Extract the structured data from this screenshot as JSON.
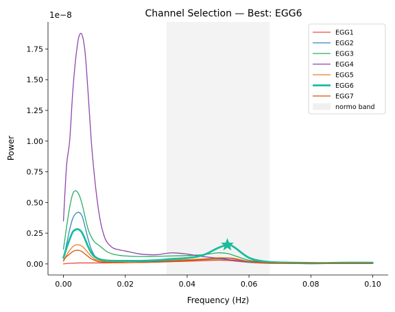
{
  "chart_data": {
    "type": "line",
    "title": "Channel Selection — Best: EGG6",
    "xlabel": "Frequency (Hz)",
    "ylabel": "Power",
    "scale_label": "1e−8",
    "xlim": [
      -0.005,
      0.105
    ],
    "ylim": [
      -0.09,
      1.97
    ],
    "x_ticks": [
      0.0,
      0.02,
      0.04,
      0.06,
      0.08,
      0.1
    ],
    "x_tick_labels": [
      "0.00",
      "0.02",
      "0.04",
      "0.06",
      "0.08",
      "0.10"
    ],
    "y_ticks": [
      0.0,
      0.25,
      0.5,
      0.75,
      1.0,
      1.25,
      1.5,
      1.75
    ],
    "y_tick_labels": [
      "0.00",
      "0.25",
      "0.50",
      "0.75",
      "1.00",
      "1.25",
      "1.50",
      "1.75"
    ],
    "normo_band": {
      "label": "normo band",
      "x_range": [
        0.0333,
        0.0667
      ],
      "color": "#eeeeee"
    },
    "best": {
      "name": "EGG6",
      "x": 0.053,
      "y": 0.155,
      "color": "#1abc9c"
    },
    "legend_position": "top-right",
    "grid": false,
    "x": [
      0.0,
      0.001,
      0.002,
      0.003,
      0.004,
      0.005,
      0.006,
      0.007,
      0.008,
      0.009,
      0.01,
      0.011,
      0.012,
      0.013,
      0.014,
      0.016,
      0.018,
      0.02,
      0.025,
      0.03,
      0.035,
      0.04,
      0.045,
      0.05,
      0.053,
      0.055,
      0.06,
      0.065,
      0.07,
      0.08,
      0.09,
      0.1
    ],
    "series": [
      {
        "name": "EGG1",
        "color": "#e74c3c",
        "width": 1.3,
        "values": [
          0.0,
          0.003,
          0.005,
          0.006,
          0.007,
          0.008,
          0.008,
          0.008,
          0.008,
          0.008,
          0.008,
          0.008,
          0.008,
          0.008,
          0.008,
          0.009,
          0.01,
          0.01,
          0.012,
          0.014,
          0.018,
          0.022,
          0.026,
          0.03,
          0.028,
          0.024,
          0.012,
          0.006,
          0.004,
          0.003,
          0.003,
          0.003
        ]
      },
      {
        "name": "EGG2",
        "color": "#2e86c1",
        "width": 1.3,
        "values": [
          0.05,
          0.16,
          0.28,
          0.37,
          0.41,
          0.42,
          0.39,
          0.3,
          0.2,
          0.12,
          0.07,
          0.05,
          0.04,
          0.035,
          0.03,
          0.025,
          0.02,
          0.02,
          0.02,
          0.022,
          0.025,
          0.03,
          0.035,
          0.04,
          0.035,
          0.03,
          0.015,
          0.01,
          0.008,
          0.005,
          0.005,
          0.005
        ]
      },
      {
        "name": "EGG3",
        "color": "#27ae60",
        "width": 1.3,
        "values": [
          0.12,
          0.3,
          0.46,
          0.57,
          0.595,
          0.565,
          0.49,
          0.38,
          0.28,
          0.22,
          0.18,
          0.16,
          0.14,
          0.12,
          0.1,
          0.08,
          0.07,
          0.065,
          0.06,
          0.062,
          0.065,
          0.068,
          0.075,
          0.09,
          0.085,
          0.07,
          0.03,
          0.018,
          0.015,
          0.012,
          0.01,
          0.01
        ]
      },
      {
        "name": "EGG4",
        "color": "#8e44ad",
        "width": 1.3,
        "values": [
          0.35,
          0.8,
          1.0,
          1.4,
          1.68,
          1.85,
          1.865,
          1.72,
          1.38,
          1.0,
          0.72,
          0.5,
          0.34,
          0.24,
          0.18,
          0.13,
          0.115,
          0.105,
          0.08,
          0.075,
          0.09,
          0.08,
          0.06,
          0.048,
          0.038,
          0.03,
          0.02,
          0.015,
          0.012,
          0.01,
          0.008,
          0.008
        ]
      },
      {
        "name": "EGG5",
        "color": "#e67e22",
        "width": 1.3,
        "values": [
          0.02,
          0.07,
          0.11,
          0.14,
          0.155,
          0.155,
          0.145,
          0.12,
          0.09,
          0.06,
          0.04,
          0.03,
          0.025,
          0.02,
          0.018,
          0.016,
          0.016,
          0.018,
          0.022,
          0.026,
          0.03,
          0.035,
          0.04,
          0.05,
          0.048,
          0.04,
          0.02,
          0.01,
          0.008,
          0.006,
          0.006,
          0.006
        ]
      },
      {
        "name": "EGG6",
        "color": "#1abc9c",
        "width": 2.8,
        "values": [
          0.05,
          0.13,
          0.2,
          0.26,
          0.28,
          0.28,
          0.255,
          0.2,
          0.14,
          0.09,
          0.06,
          0.045,
          0.035,
          0.03,
          0.028,
          0.026,
          0.025,
          0.025,
          0.025,
          0.03,
          0.04,
          0.048,
          0.07,
          0.13,
          0.155,
          0.14,
          0.05,
          0.02,
          0.012,
          0.005,
          0.01,
          0.01
        ]
      },
      {
        "name": "EGG7",
        "color": "#d35400",
        "width": 1.3,
        "values": [
          0.03,
          0.06,
          0.08,
          0.1,
          0.11,
          0.11,
          0.1,
          0.08,
          0.06,
          0.04,
          0.03,
          0.02,
          0.016,
          0.014,
          0.012,
          0.011,
          0.01,
          0.01,
          0.012,
          0.016,
          0.02,
          0.028,
          0.036,
          0.045,
          0.048,
          0.045,
          0.02,
          0.008,
          0.005,
          0.004,
          0.004,
          0.004
        ]
      }
    ]
  }
}
